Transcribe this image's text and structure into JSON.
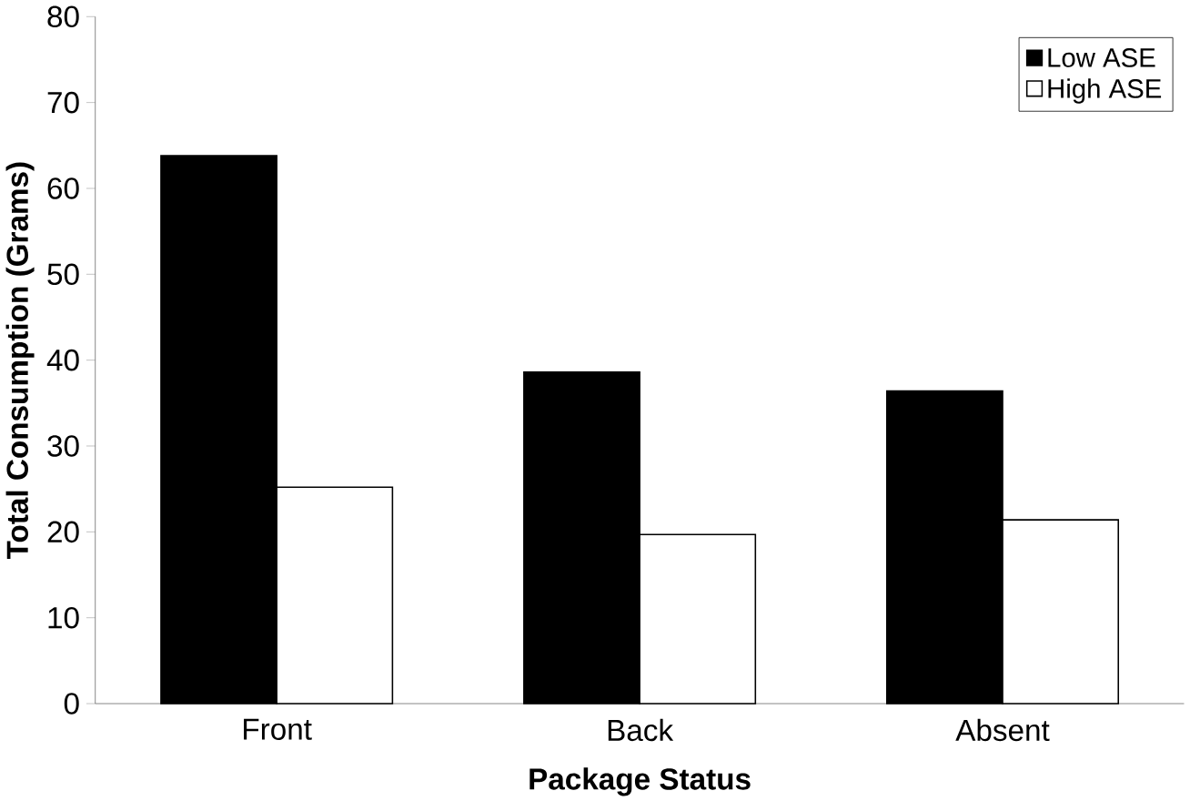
{
  "chart_data": {
    "type": "bar",
    "xlabel": "Package Status",
    "ylabel": "Total Consumption (Grams)",
    "categories": [
      "Front",
      "Back",
      "Absent"
    ],
    "series": [
      {
        "name": "Low ASE",
        "color": "#000000",
        "values": [
          63.8,
          38.6,
          36.4
        ]
      },
      {
        "name": "High ASE",
        "color": "#ffffff",
        "values": [
          25.2,
          19.7,
          21.4
        ]
      }
    ],
    "ylim": [
      0,
      80
    ],
    "yticks": [
      0,
      10,
      20,
      30,
      40,
      50,
      60,
      70,
      80
    ],
    "grid": false,
    "legend": "top right"
  }
}
